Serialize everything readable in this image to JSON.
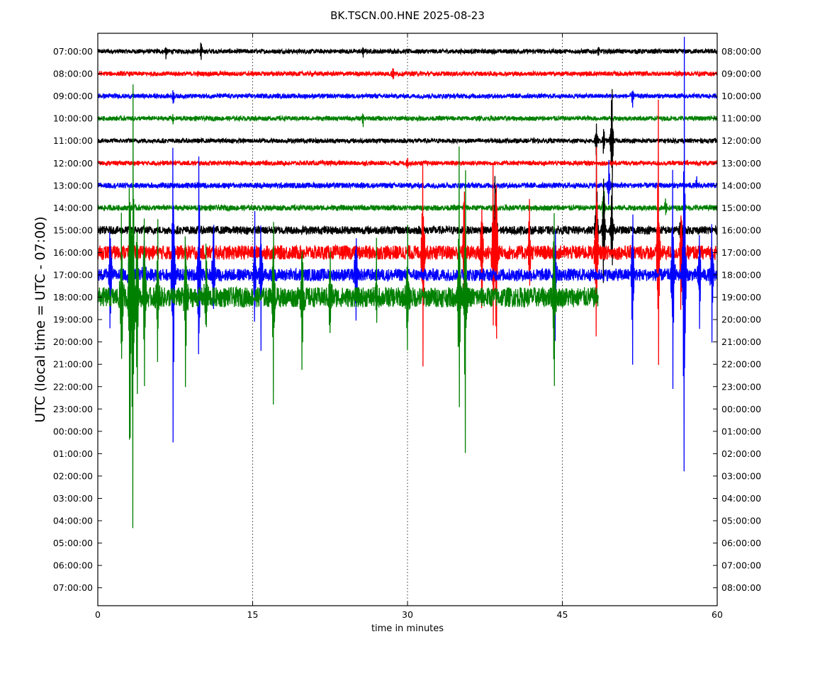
{
  "chart_data": {
    "type": "line",
    "title": "BK.TSCN.00.HNE 2025-08-23",
    "xlabel": "time in minutes",
    "ylabel": "UTC (local time = UTC - 07:00)",
    "xlim": [
      0,
      60
    ],
    "x_ticks": [
      "0",
      "15",
      "30",
      "45",
      "60"
    ],
    "x_tick_values": [
      0,
      15,
      30,
      45,
      60
    ],
    "grid": "vertical dotted at x ticks",
    "left_tick_labels": [
      "07:00:00",
      "08:00:00",
      "09:00:00",
      "10:00:00",
      "11:00:00",
      "12:00:00",
      "13:00:00",
      "14:00:00",
      "15:00:00",
      "16:00:00",
      "17:00:00",
      "18:00:00",
      "19:00:00",
      "20:00:00",
      "21:00:00",
      "22:00:00",
      "23:00:00",
      "00:00:00",
      "01:00:00",
      "02:00:00",
      "03:00:00",
      "04:00:00",
      "05:00:00",
      "06:00:00",
      "07:00:00"
    ],
    "right_tick_labels": [
      "08:00:00",
      "09:00:00",
      "10:00:00",
      "11:00:00",
      "12:00:00",
      "13:00:00",
      "14:00:00",
      "15:00:00",
      "16:00:00",
      "17:00:00",
      "18:00:00",
      "19:00:00",
      "20:00:00",
      "21:00:00",
      "22:00:00",
      "23:00:00",
      "00:00:00",
      "01:00:00",
      "02:00:00",
      "03:00:00",
      "04:00:00",
      "05:00:00",
      "06:00:00",
      "07:00:00",
      "08:00:00"
    ],
    "trace_colors": [
      "#000000",
      "#ff0000",
      "#0000ff",
      "#008000"
    ],
    "traces": [
      {
        "row": 0,
        "end_minute": 60,
        "noise": 0.1,
        "spikes": [
          [
            6.6,
            0.4
          ],
          [
            10.0,
            0.6
          ],
          [
            25.7,
            0.3
          ],
          [
            48.5,
            0.3
          ]
        ]
      },
      {
        "row": 1,
        "end_minute": 60,
        "noise": 0.1,
        "spikes": [
          [
            28.6,
            0.4
          ]
        ]
      },
      {
        "row": 2,
        "end_minute": 60,
        "noise": 0.1,
        "spikes": [
          [
            7.3,
            0.5
          ],
          [
            51.8,
            0.5
          ]
        ]
      },
      {
        "row": 3,
        "end_minute": 60,
        "noise": 0.1,
        "spikes": [
          [
            7.3,
            0.4
          ],
          [
            25.7,
            0.5
          ]
        ]
      },
      {
        "row": 4,
        "end_minute": 60,
        "noise": 0.1,
        "spikes": [
          [
            48.3,
            1.0
          ],
          [
            49.0,
            0.8
          ],
          [
            49.8,
            3.5
          ]
        ]
      },
      {
        "row": 5,
        "end_minute": 60,
        "noise": 0.1,
        "spikes": [
          [
            30.0,
            0.4
          ]
        ]
      },
      {
        "row": 6,
        "end_minute": 60,
        "noise": 0.12,
        "spikes": [
          [
            49.5,
            1.2
          ],
          [
            58.0,
            0.4
          ]
        ]
      },
      {
        "row": 7,
        "end_minute": 60,
        "noise": 0.12,
        "spikes": [
          [
            49.0,
            1.5
          ],
          [
            55.0,
            0.5
          ]
        ]
      },
      {
        "row": 8,
        "end_minute": 60,
        "noise": 0.18,
        "spikes": [
          [
            38.5,
            3.6
          ],
          [
            48.3,
            4.5
          ],
          [
            49.0,
            3.5
          ],
          [
            49.8,
            3.2
          ],
          [
            56.5,
            1.0
          ]
        ]
      },
      {
        "row": 9,
        "end_minute": 60,
        "noise": 0.32,
        "spikes": [
          [
            31.5,
            5.8
          ],
          [
            35.5,
            4.8
          ],
          [
            37.2,
            3.6
          ],
          [
            38.3,
            4.8
          ],
          [
            38.6,
            6.0
          ],
          [
            41.8,
            2.8
          ],
          [
            48.3,
            5.8
          ],
          [
            54.3,
            7.8
          ],
          [
            56.5,
            3.5
          ]
        ]
      },
      {
        "row": 10,
        "end_minute": 60,
        "noise": 0.28,
        "spikes": [
          [
            1.2,
            3.5
          ],
          [
            3.1,
            3.0
          ],
          [
            4.5,
            2.5
          ],
          [
            7.3,
            9.6
          ],
          [
            9.8,
            6.8
          ],
          [
            11.2,
            3.5
          ],
          [
            15.2,
            3.5
          ],
          [
            15.8,
            3.6
          ],
          [
            25.0,
            3.0
          ],
          [
            44.3,
            3.5
          ],
          [
            51.8,
            4.8
          ],
          [
            55.7,
            6.4
          ],
          [
            56.8,
            13.0
          ],
          [
            58.3,
            3.0
          ],
          [
            59.5,
            3.5
          ]
        ]
      },
      {
        "row": 11,
        "end_minute": 48.5,
        "noise": 0.45,
        "spikes": [
          [
            2.3,
            4.8
          ],
          [
            3.1,
            11.1
          ],
          [
            3.4,
            13.0
          ],
          [
            3.8,
            6.0
          ],
          [
            4.5,
            5.4
          ],
          [
            5.8,
            4.2
          ],
          [
            8.5,
            5.0
          ],
          [
            10.5,
            3.0
          ],
          [
            17.0,
            5.7
          ],
          [
            19.8,
            4.2
          ],
          [
            22.5,
            3.0
          ],
          [
            27.0,
            2.5
          ],
          [
            30.0,
            3.6
          ],
          [
            35.0,
            7.8
          ],
          [
            35.6,
            8.0
          ],
          [
            44.2,
            5.6
          ]
        ]
      }
    ]
  }
}
